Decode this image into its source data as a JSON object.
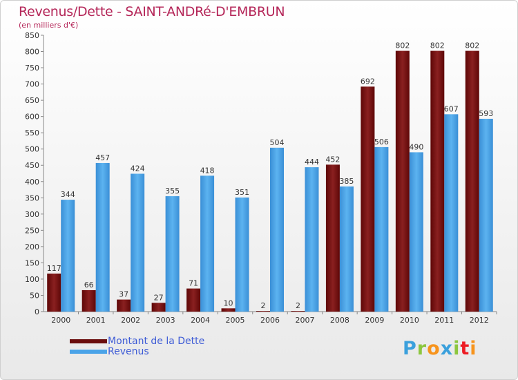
{
  "header": {
    "title": "Revenus/Dette - SAINT-ANDRé-D'EMBRUN",
    "subtitle": "(en milliers d'€)"
  },
  "colors": {
    "dette": "#7a1111",
    "revenus": "#4aa3e8",
    "title": "#b5285a",
    "legend_text": "#3d5bd6"
  },
  "legend": {
    "items": [
      {
        "label": "Montant de la Dette",
        "color": "#7a1111"
      },
      {
        "label": "Revenus",
        "color": "#4aa3e8"
      }
    ]
  },
  "logo": {
    "letters": [
      {
        "ch": "P",
        "color": "#3aa0dc"
      },
      {
        "ch": "r",
        "color": "#8cc63f"
      },
      {
        "ch": "o",
        "color": "#f7941d"
      },
      {
        "ch": "x",
        "color": "#3aa0dc"
      },
      {
        "ch": "i",
        "color": "#8cc63f"
      },
      {
        "ch": "t",
        "color": "#ed1c24"
      },
      {
        "ch": "i",
        "color": "#f7941d"
      }
    ]
  },
  "chart_data": {
    "type": "bar",
    "title": "Revenus/Dette - SAINT-ANDRé-D'EMBRUN",
    "subtitle": "(en milliers d'€)",
    "categories": [
      "2000",
      "2001",
      "2002",
      "2003",
      "2004",
      "2005",
      "2006",
      "2007",
      "2008",
      "2009",
      "2010",
      "2011",
      "2012"
    ],
    "series": [
      {
        "name": "Montant de la Dette",
        "values": [
          117,
          66,
          37,
          27,
          71,
          10,
          2,
          2,
          452,
          692,
          802,
          802,
          802
        ]
      },
      {
        "name": "Revenus",
        "values": [
          344,
          457,
          424,
          355,
          418,
          351,
          504,
          444,
          385,
          506,
          490,
          607,
          593
        ]
      }
    ],
    "ylim": [
      0,
      850
    ],
    "yticks": [
      0,
      50,
      100,
      150,
      200,
      250,
      300,
      350,
      400,
      450,
      500,
      550,
      600,
      650,
      700,
      750,
      800,
      850
    ],
    "grid": false,
    "legend_position": "bottom-left"
  }
}
